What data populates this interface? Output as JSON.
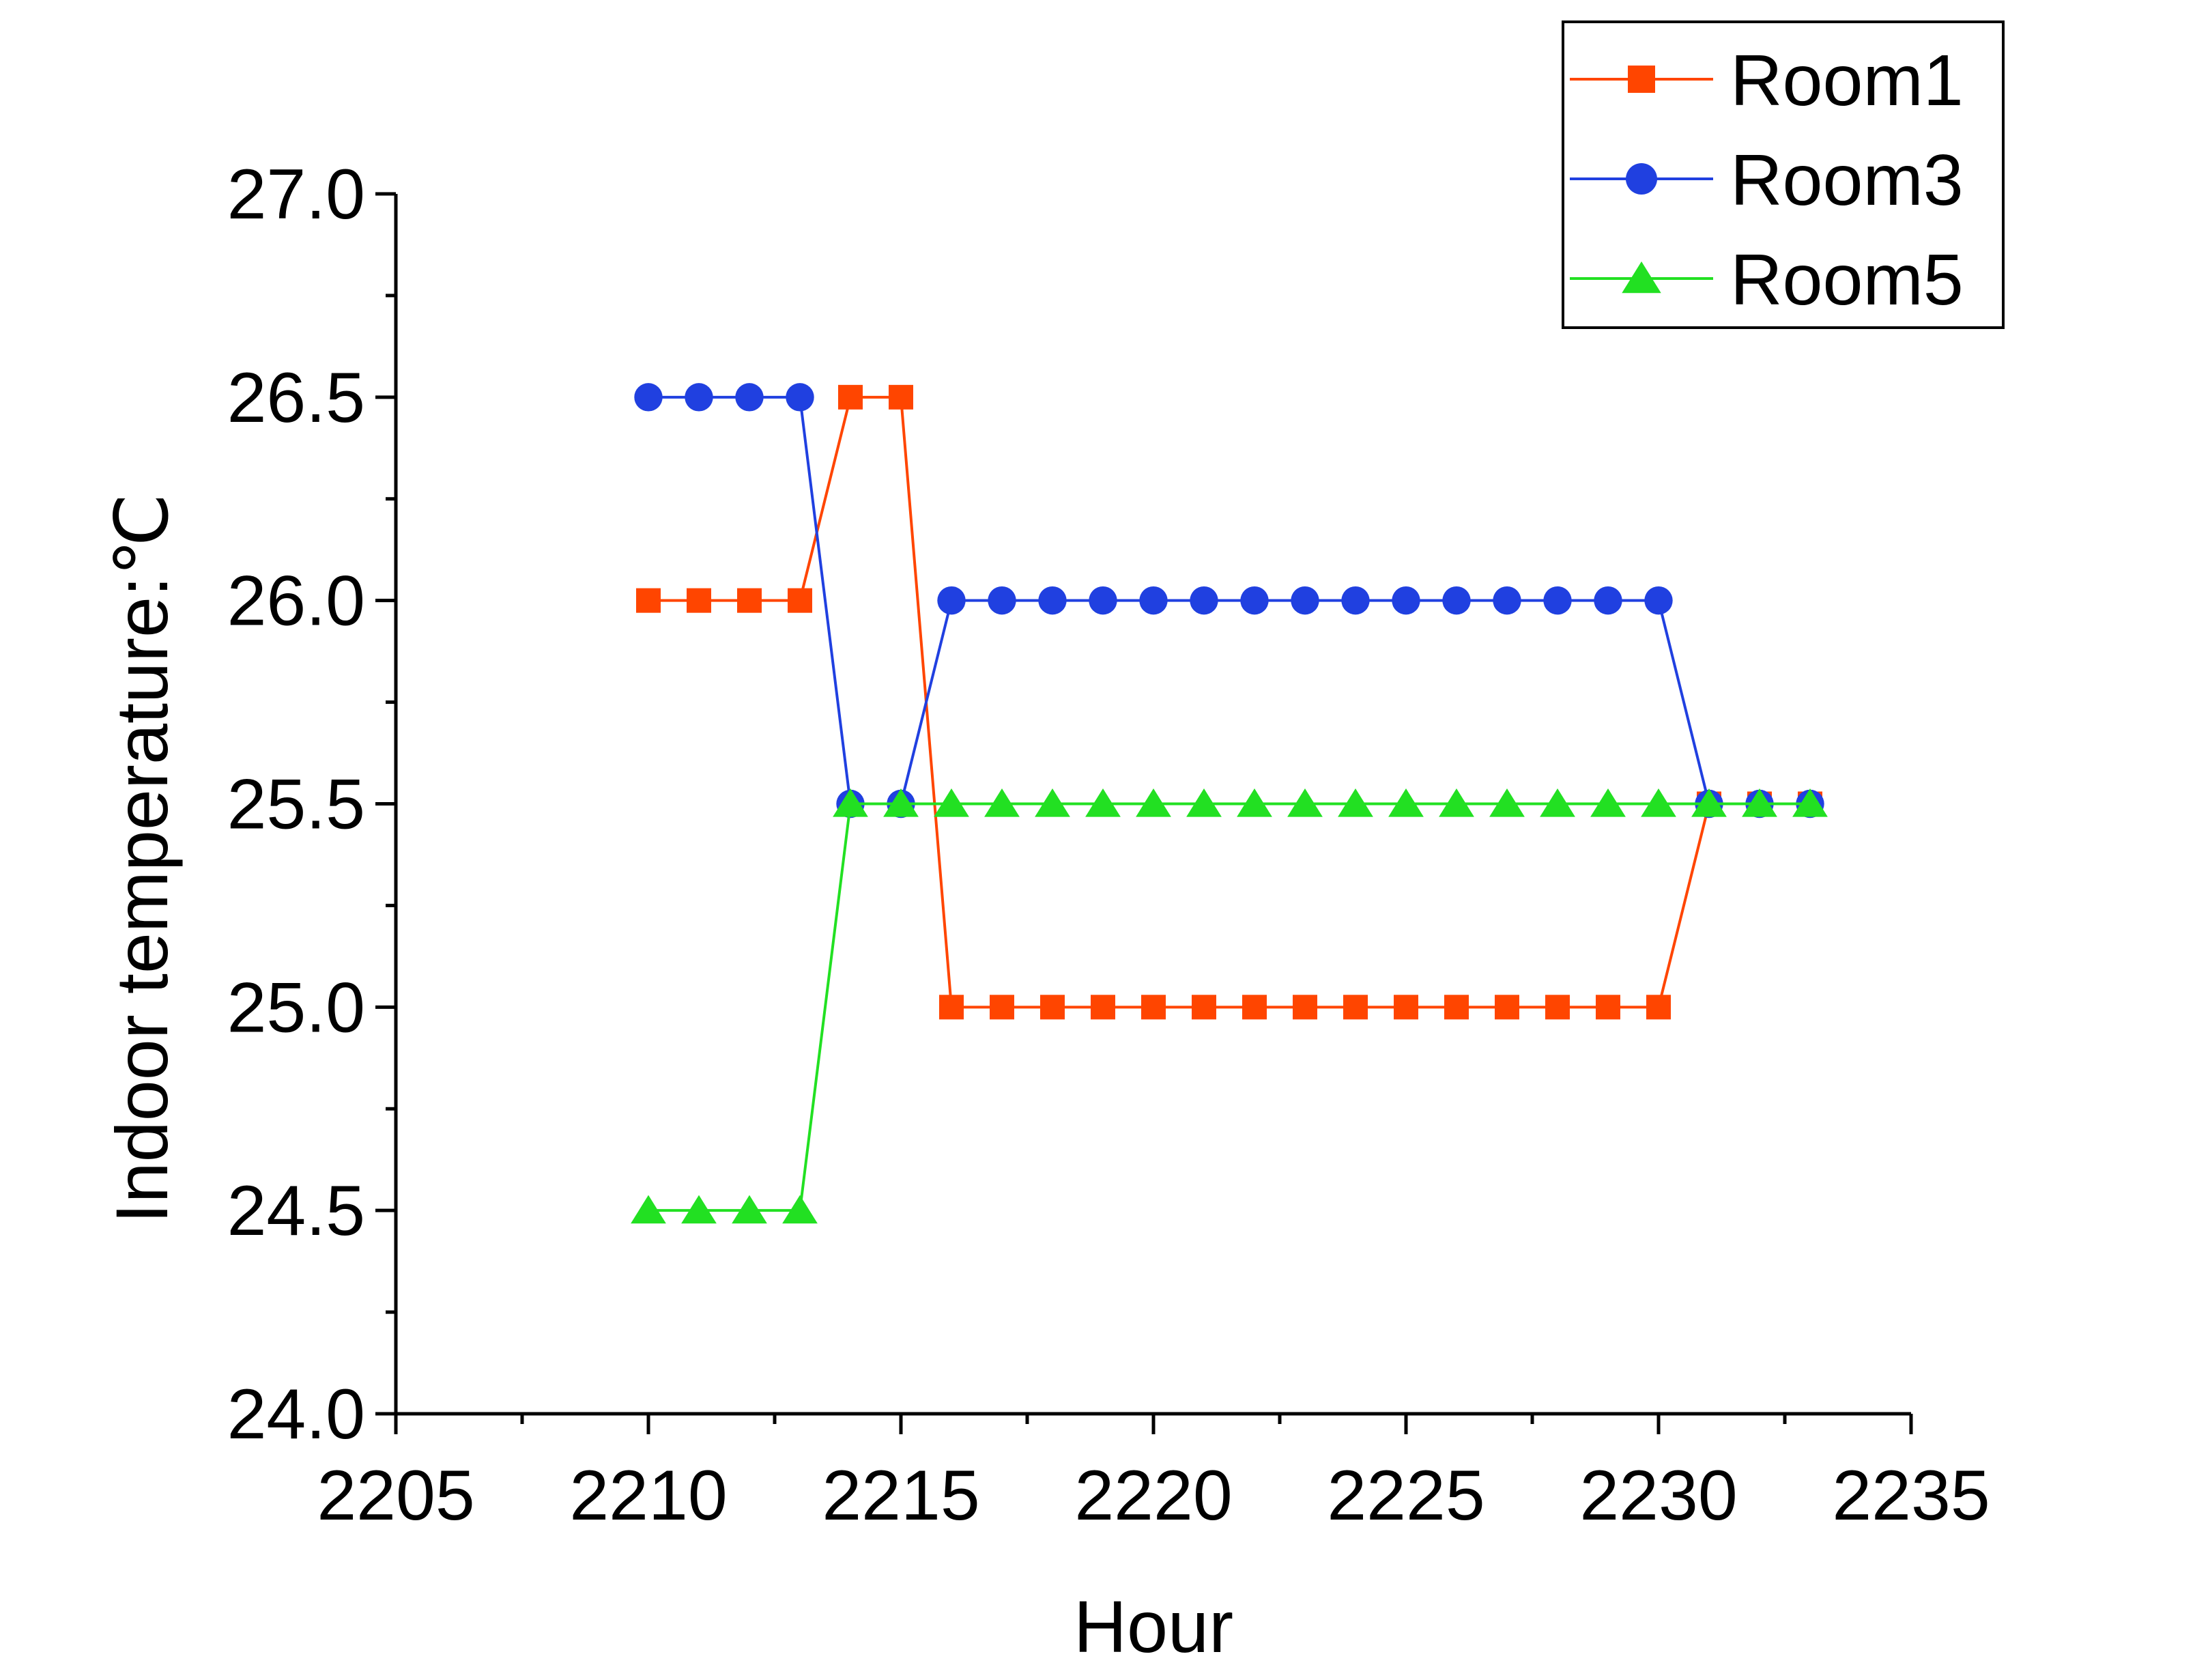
{
  "chart_data": {
    "type": "line",
    "title": "",
    "xlabel": "Hour",
    "ylabel": "Indoor temperature:℃",
    "xlim": [
      2205,
      2235
    ],
    "ylim": [
      24.0,
      27.0
    ],
    "x_ticks": [
      "2205",
      "2210",
      "2215",
      "2220",
      "2225",
      "2230",
      "2235"
    ],
    "y_ticks": [
      "24.0",
      "24.5",
      "25.0",
      "25.5",
      "26.0",
      "26.5",
      "27.0"
    ],
    "grid": false,
    "legend_position": "top-right",
    "x": [
      2210,
      2211,
      2212,
      2213,
      2214,
      2215,
      2216,
      2217,
      2218,
      2219,
      2220,
      2221,
      2222,
      2223,
      2224,
      2225,
      2226,
      2227,
      2228,
      2229,
      2230,
      2231,
      2232,
      2233
    ],
    "series": [
      {
        "name": "Room1",
        "color": "#ff4500",
        "marker": "square",
        "values": [
          26.0,
          26.0,
          26.0,
          26.0,
          26.5,
          26.5,
          25.0,
          25.0,
          25.0,
          25.0,
          25.0,
          25.0,
          25.0,
          25.0,
          25.0,
          25.0,
          25.0,
          25.0,
          25.0,
          25.0,
          25.0,
          25.5,
          25.5,
          25.5
        ]
      },
      {
        "name": "Room3",
        "color": "#2040e0",
        "marker": "circle",
        "values": [
          26.5,
          26.5,
          26.5,
          26.5,
          25.5,
          25.5,
          26.0,
          26.0,
          26.0,
          26.0,
          26.0,
          26.0,
          26.0,
          26.0,
          26.0,
          26.0,
          26.0,
          26.0,
          26.0,
          26.0,
          26.0,
          25.5,
          25.5,
          25.5
        ]
      },
      {
        "name": "Room5",
        "color": "#22e022",
        "marker": "triangle",
        "values": [
          24.5,
          24.5,
          24.5,
          24.5,
          25.5,
          25.5,
          25.5,
          25.5,
          25.5,
          25.5,
          25.5,
          25.5,
          25.5,
          25.5,
          25.5,
          25.5,
          25.5,
          25.5,
          25.5,
          25.5,
          25.5,
          25.5,
          25.5,
          25.5
        ]
      }
    ]
  }
}
